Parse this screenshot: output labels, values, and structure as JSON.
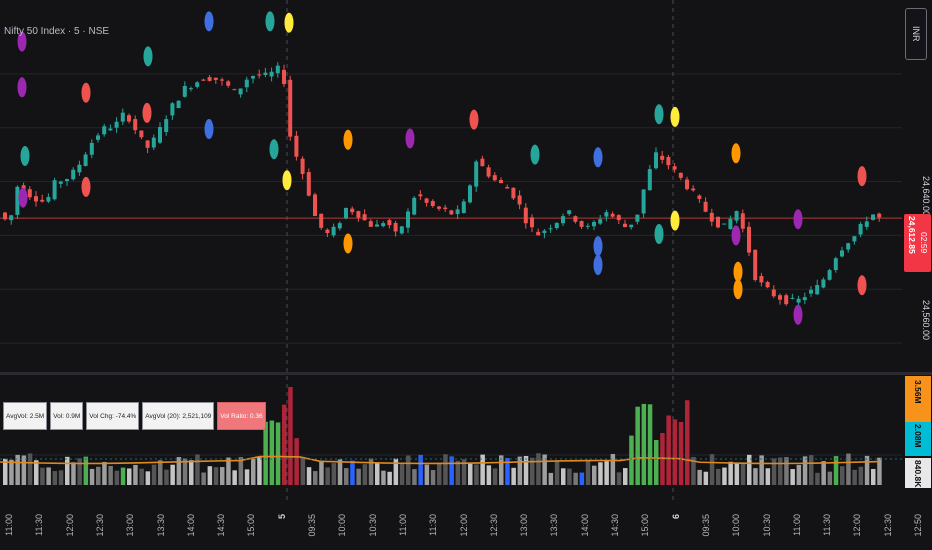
{
  "header": {
    "symbol_title": "Nifty 50 Index · 5 · NSE",
    "currency_button": "INR"
  },
  "price_axis": {
    "ticks": [
      {
        "label": "24,640.00",
        "value": 24640
      },
      {
        "label": "24,560.00",
        "value": 24560
      }
    ],
    "last_price": "24,612.85",
    "countdown": "02:59"
  },
  "volume_panel": {
    "stats": [
      {
        "label": "AvgVol: 2.5M",
        "alert": false
      },
      {
        "label": "Vol: 0.9M",
        "alert": false
      },
      {
        "label": "Vol Chg: -74.4%",
        "alert": false
      },
      {
        "label": "AvgVol (20): 2,521,109",
        "alert": false
      },
      {
        "label": "Vol Ratio: 0.36",
        "alert": true
      }
    ],
    "axis_tags": [
      {
        "label": "3.56M",
        "color": "#f7931a"
      },
      {
        "label": "2.08M",
        "color": "#00bcd4"
      },
      {
        "label": "840.8K",
        "color": "#e0e0e0"
      }
    ]
  },
  "time_axis": {
    "labels": [
      "11:00",
      "11:30",
      "12:00",
      "12:30",
      "13:00",
      "13:30",
      "14:00",
      "14:30",
      "15:00",
      "5",
      "09:35",
      "10:00",
      "10:30",
      "11:00",
      "11:30",
      "12:00",
      "12:30",
      "13:00",
      "13:30",
      "14:00",
      "14:30",
      "15:00",
      "6",
      "09:35",
      "10:00",
      "10:30",
      "11:00",
      "11:30",
      "12:00",
      "12:30",
      "12:50"
    ]
  },
  "colors": {
    "up": "#26a69a",
    "down": "#ef5350",
    "bg": "#131316",
    "grid": "#24252b",
    "price_line": "#b23a3a",
    "ma_line": "#e08a1e",
    "dot_palette": [
      "#9c27b0",
      "#ef5350",
      "#26a69a",
      "#3f6fe0",
      "#ffeb3b",
      "#ff9800"
    ]
  },
  "chart_data": {
    "type": "candlestick",
    "title": "Nifty 50 Index · 5 · NSE",
    "ylabel": "",
    "ylim": [
      24500,
      24760
    ],
    "y_ticks": [
      24640,
      24560
    ],
    "last_value": 24612.85,
    "session_breaks": [
      "5",
      "6"
    ],
    "price_path": [
      [
        0,
        24620
      ],
      [
        8,
        24612
      ],
      [
        14,
        24610
      ],
      [
        22,
        24638
      ],
      [
        30,
        24632
      ],
      [
        40,
        24628
      ],
      [
        50,
        24624
      ],
      [
        60,
        24640
      ],
      [
        70,
        24642
      ],
      [
        80,
        24648
      ],
      [
        90,
        24662
      ],
      [
        100,
        24674
      ],
      [
        110,
        24680
      ],
      [
        120,
        24682
      ],
      [
        130,
        24692
      ],
      [
        140,
        24678
      ],
      [
        150,
        24664
      ],
      [
        160,
        24672
      ],
      [
        170,
        24688
      ],
      [
        180,
        24700
      ],
      [
        190,
        24710
      ],
      [
        200,
        24714
      ],
      [
        210,
        24718
      ],
      [
        220,
        24716
      ],
      [
        230,
        24712
      ],
      [
        240,
        24705
      ],
      [
        250,
        24716
      ],
      [
        260,
        24720
      ],
      [
        270,
        24718
      ],
      [
        280,
        24722
      ],
      [
        287,
        24726
      ],
      [
        292,
        24680
      ],
      [
        300,
        24660
      ],
      [
        310,
        24640
      ],
      [
        320,
        24612
      ],
      [
        330,
        24600
      ],
      [
        340,
        24605
      ],
      [
        350,
        24620
      ],
      [
        360,
        24618
      ],
      [
        370,
        24610
      ],
      [
        380,
        24606
      ],
      [
        390,
        24612
      ],
      [
        400,
        24600
      ],
      [
        410,
        24612
      ],
      [
        420,
        24632
      ],
      [
        430,
        24624
      ],
      [
        440,
        24620
      ],
      [
        450,
        24618
      ],
      [
        460,
        24615
      ],
      [
        470,
        24625
      ],
      [
        480,
        24656
      ],
      [
        490,
        24648
      ],
      [
        500,
        24640
      ],
      [
        510,
        24636
      ],
      [
        520,
        24628
      ],
      [
        530,
        24612
      ],
      [
        540,
        24600
      ],
      [
        550,
        24605
      ],
      [
        560,
        24610
      ],
      [
        570,
        24618
      ],
      [
        580,
        24612
      ],
      [
        590,
        24604
      ],
      [
        600,
        24610
      ],
      [
        610,
        24618
      ],
      [
        620,
        24612
      ],
      [
        630,
        24606
      ],
      [
        640,
        24612
      ],
      [
        650,
        24640
      ],
      [
        660,
        24660
      ],
      [
        670,
        24655
      ],
      [
        680,
        24646
      ],
      [
        690,
        24638
      ],
      [
        700,
        24628
      ],
      [
        710,
        24618
      ],
      [
        720,
        24610
      ],
      [
        730,
        24605
      ],
      [
        740,
        24620
      ],
      [
        750,
        24598
      ],
      [
        760,
        24568
      ],
      [
        770,
        24560
      ],
      [
        780,
        24555
      ],
      [
        790,
        24552
      ],
      [
        800,
        24550
      ],
      [
        810,
        24556
      ],
      [
        820,
        24560
      ],
      [
        830,
        24570
      ],
      [
        840,
        24585
      ],
      [
        850,
        24595
      ],
      [
        860,
        24600
      ],
      [
        870,
        24612
      ],
      [
        878,
        24616
      ],
      [
        884,
        24612
      ]
    ],
    "series": [
      {
        "name": "",
        "kind": "volume_bars"
      },
      {
        "name": "",
        "kind": "volume_average"
      }
    ],
    "volume_levels": [
      3.56,
      2.08,
      0.8408
    ],
    "volume_unit": "M",
    "dots": [
      {
        "color": "#9c27b0",
        "price": 24744
      },
      {
        "color": "#9c27b0",
        "price": 24710
      },
      {
        "color": "#ef5350",
        "price": 24706
      },
      {
        "color": "#26a69a",
        "price": 24733
      },
      {
        "color": "#3f6fe0",
        "price": 24759
      },
      {
        "color": "#26a69a",
        "price": 24759
      },
      {
        "color": "#ffeb3b",
        "price": 24758
      },
      {
        "color": "#3f6fe0",
        "price": 24679
      },
      {
        "color": "#ef5350",
        "price": 24691
      },
      {
        "color": "#26a69a",
        "price": 24664
      },
      {
        "color": "#26a69a",
        "price": 24659
      },
      {
        "color": "#ef5350",
        "price": 24636
      },
      {
        "color": "#9c27b0",
        "price": 24628
      },
      {
        "color": "#ff9800",
        "price": 24671
      },
      {
        "color": "#9c27b0",
        "price": 24672
      },
      {
        "color": "#ffeb3b",
        "price": 24641
      },
      {
        "color": "#ff9800",
        "price": 24594
      },
      {
        "color": "#ef5350",
        "price": 24686
      },
      {
        "color": "#26a69a",
        "price": 24660
      },
      {
        "color": "#3f6fe0",
        "price": 24658
      },
      {
        "color": "#26a69a",
        "price": 24690
      },
      {
        "color": "#ffeb3b",
        "price": 24688
      },
      {
        "color": "#ff9800",
        "price": 24661
      },
      {
        "color": "#26a69a",
        "price": 24601
      },
      {
        "color": "#3f6fe0",
        "price": 24578
      },
      {
        "color": "#ffeb3b",
        "price": 24611
      },
      {
        "color": "#9c27b0",
        "price": 24612
      },
      {
        "color": "#ff9800",
        "price": 24573
      },
      {
        "color": "#ef5350",
        "price": 24644
      },
      {
        "color": "#9c27b0",
        "price": 24600
      },
      {
        "color": "#ef5350",
        "price": 24563
      },
      {
        "color": "#9c27b0",
        "price": 24541
      },
      {
        "color": "#3f6fe0",
        "price": 24592
      },
      {
        "color": "#ff9800",
        "price": 24560
      }
    ]
  }
}
